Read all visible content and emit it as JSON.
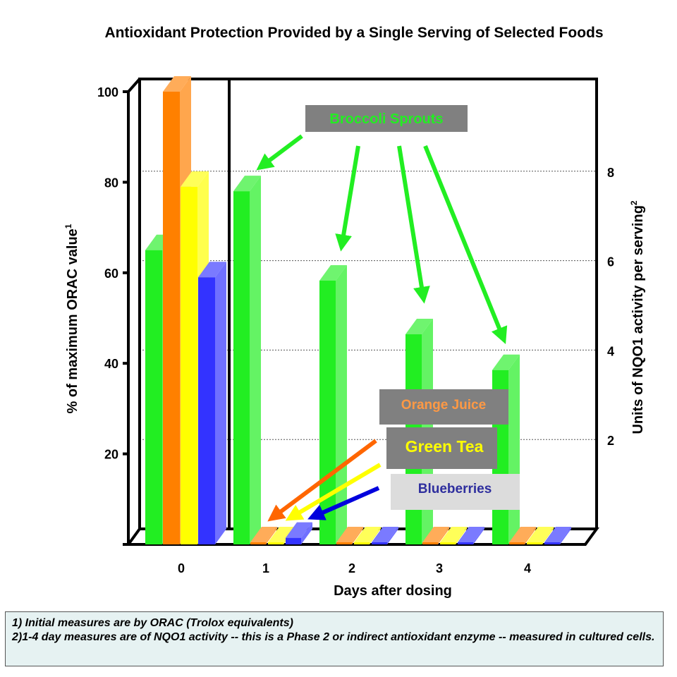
{
  "chart_data": {
    "type": "bar",
    "title": "Antioxidant Protection Provided by a Single Serving of Selected Foods",
    "xlabel": "Days after dosing",
    "ylabel": "% of maximum ORAC value",
    "ylabel_sup": "1",
    "y2label": "Units of NQO1 activity per serving",
    "y2label_sup": "2",
    "categories": [
      "0",
      "1",
      "2",
      "3",
      "4"
    ],
    "ylim": [
      0,
      100
    ],
    "yticks": [
      20,
      40,
      60,
      80,
      100
    ],
    "y2lim": [
      0,
      10
    ],
    "y2ticks": [
      2,
      4,
      6,
      8
    ],
    "grid": true,
    "series": [
      {
        "name": "Broccoli Sprouts",
        "color": "#22ee22",
        "values": [
          65,
          7.9,
          5.9,
          4.7,
          3.9
        ]
      },
      {
        "name": "Orange Juice",
        "color": "#ff8000",
        "values": [
          100,
          0,
          0,
          0,
          0
        ]
      },
      {
        "name": "Green Tea",
        "color": "#ffff00",
        "values": [
          79,
          0,
          0,
          0,
          0
        ]
      },
      {
        "name": "Blueberries",
        "color": "#3333ff",
        "values": [
          59,
          0.1,
          0,
          0,
          0
        ]
      }
    ],
    "notes": "Day 0 values are on the left axis (% of maximum ORAC value); days 1-4 values are on the right axis (units of NQO1 activity per serving).",
    "annotations": {
      "broccoli": "Broccoli Sprouts",
      "orange": "Orange Juice",
      "tea": "Green Tea",
      "blueberries": "Blueberries"
    }
  },
  "footnotes": [
    "1) Initial measures are by ORAC (Trolox equivalents)",
    "2)1-4 day measures are of NQO1 activity -- this is a Phase 2 or indirect antioxidant enzyme -- measured in cultured cells."
  ]
}
